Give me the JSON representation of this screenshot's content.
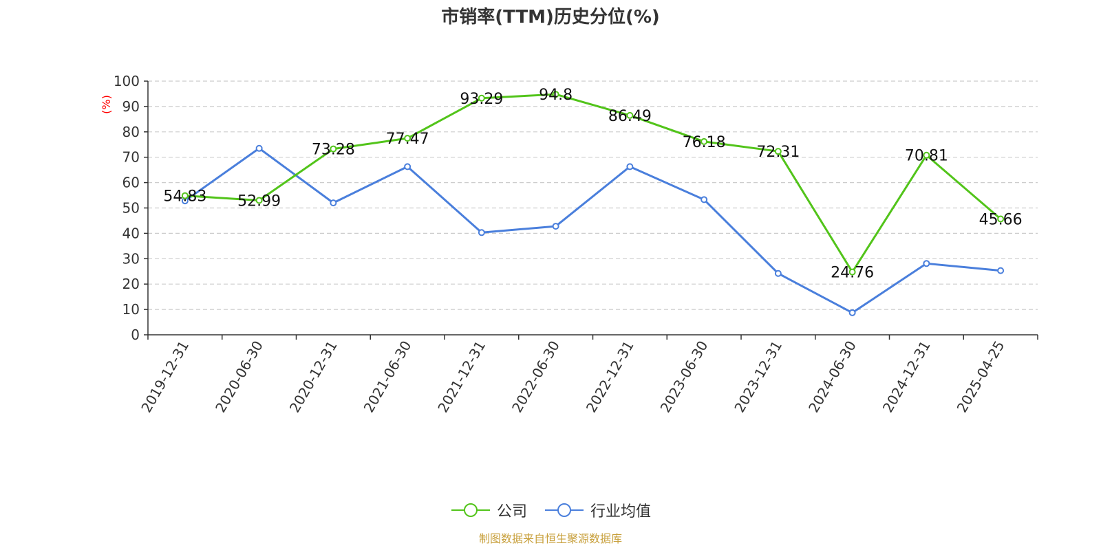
{
  "title": "市销率(TTM)历史分位(%)",
  "source_note": "制图数据来自恒生聚源数据库",
  "colors": {
    "company": "#52c41a",
    "industry": "#4a7fdc",
    "ylabel": "#ff0000",
    "grid": "#cccccc",
    "axis": "#333333"
  },
  "chart_data": {
    "type": "line",
    "title": "市销率(TTM)历史分位(%)",
    "ylabel": "(%)",
    "xlabel": "",
    "ylim": [
      0,
      100
    ],
    "yticks": [
      0,
      10,
      20,
      30,
      40,
      50,
      60,
      70,
      80,
      90,
      100
    ],
    "grid": true,
    "legend_position": "bottom",
    "categories": [
      "2019-12-31",
      "2020-06-30",
      "2020-12-31",
      "2021-06-30",
      "2021-12-31",
      "2022-06-30",
      "2022-12-31",
      "2023-06-30",
      "2023-12-31",
      "2024-06-30",
      "2024-12-31",
      "2025-04-25"
    ],
    "series": [
      {
        "name": "公司",
        "color": "#52c41a",
        "show_labels": true,
        "values": [
          54.83,
          52.99,
          73.28,
          77.47,
          93.29,
          94.8,
          86.49,
          76.18,
          72.31,
          24.76,
          70.81,
          45.66
        ]
      },
      {
        "name": "行业均值",
        "color": "#4a7fdc",
        "show_labels": false,
        "values": [
          52.8,
          73.5,
          52.0,
          66.3,
          40.3,
          42.8,
          66.3,
          53.3,
          24.2,
          8.7,
          28.1,
          25.3
        ]
      }
    ]
  }
}
